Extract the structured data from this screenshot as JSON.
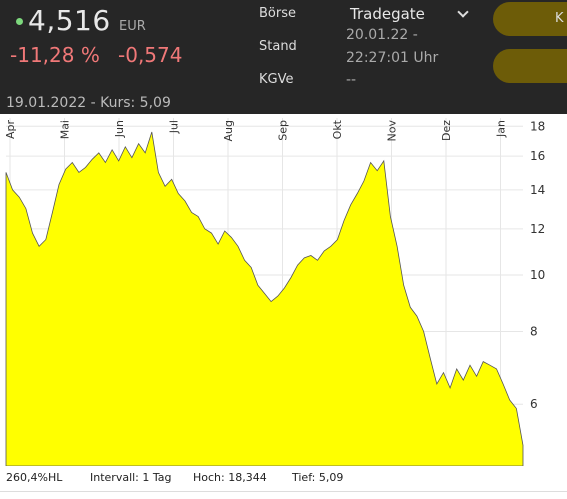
{
  "header": {
    "price": "4,516",
    "currency": "EUR",
    "change_percent": "-11,28 %",
    "change_absolute": "-0,574",
    "reference_line": "19.01.2022  -  Kurs: 5,09",
    "boerse_label": "Börse",
    "boerse_value": "Tradegate",
    "stand_label": "Stand",
    "stand_date": "20.01.22 -",
    "stand_time": "22:27:01 Uhr",
    "kgve_label": "KGVe",
    "kgve_value": "--",
    "kaufen_label": "K",
    "colors": {
      "positive_dot": "#7dd87d",
      "negative": "#f07878",
      "button": "#6d5c08",
      "fill": "#ffff00"
    }
  },
  "footer": {
    "scale_label": "260,4%HL",
    "interval": "Intervall: 1 Tag",
    "high": "Hoch:  18,344",
    "low": "Tief:   5,09"
  },
  "chart_data": {
    "type": "area",
    "x_tick_labels": [
      "Apr",
      "Mai",
      "Jun",
      "Jul",
      "Aug",
      "Sep",
      "Okt",
      "Nov",
      "Dez",
      "Jan"
    ],
    "y_tick_labels": [
      "18",
      "16",
      "14",
      "12",
      "10",
      "8",
      "6"
    ],
    "y_ticks": [
      18,
      16,
      14,
      12,
      10,
      8,
      6
    ],
    "ylim": [
      4.7,
      18.6
    ],
    "y_scale": "log",
    "grid": true,
    "x": [
      0,
      2,
      4,
      6,
      8,
      10,
      12,
      14,
      16,
      18,
      20,
      22,
      24,
      26,
      28,
      30,
      32,
      34,
      36,
      38,
      40,
      42,
      44,
      46,
      48,
      50,
      52,
      54,
      56,
      58,
      60,
      62,
      64,
      66,
      68,
      70,
      72,
      74,
      76,
      78,
      80,
      82,
      84,
      86,
      88,
      90,
      92,
      94,
      96,
      98,
      100
    ],
    "values": [
      15.0,
      14.0,
      13.6,
      13.0,
      11.8,
      11.2,
      11.5,
      12.8,
      14.3,
      15.2,
      15.6,
      15.0,
      15.3,
      15.8,
      16.2,
      15.6,
      16.4,
      15.7,
      16.6,
      15.9,
      16.8,
      16.2,
      17.6,
      15.0,
      14.2,
      14.6,
      13.8,
      13.4,
      12.8,
      12.6,
      12.0,
      11.8,
      11.3,
      11.9,
      11.6,
      11.2,
      10.6,
      10.3,
      9.6,
      9.3,
      9.0,
      9.2,
      9.5,
      9.9,
      10.4,
      10.7,
      10.8,
      10.6,
      11.0,
      11.2,
      11.5
    ],
    "x2": [
      100,
      102,
      104,
      106,
      108,
      110,
      112,
      114,
      116,
      118,
      120,
      122,
      124,
      126,
      128,
      130,
      132,
      134,
      136,
      138,
      140,
      142,
      144,
      146,
      148,
      150,
      152,
      154,
      156
    ],
    "values2": [
      11.5,
      12.4,
      13.2,
      13.8,
      14.5,
      15.6,
      15.1,
      15.7,
      12.6,
      11.2,
      9.6,
      8.8,
      8.5,
      8.0,
      7.2,
      6.5,
      6.8,
      6.4,
      6.9,
      6.6,
      7.0,
      6.7,
      7.1,
      7.0,
      6.9,
      6.5,
      6.1,
      5.9,
      5.1
    ]
  }
}
